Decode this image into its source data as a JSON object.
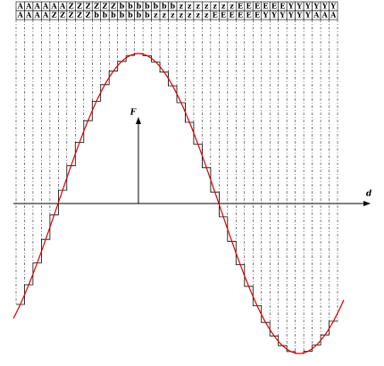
{
  "rows": [
    [
      "A",
      "A",
      "A",
      "A",
      "A",
      "A",
      "Z",
      "Z",
      "Z",
      "Z",
      "Z",
      "Z",
      "b",
      "b",
      "b",
      "b",
      "b",
      "b",
      "b",
      "z",
      "z",
      "z",
      "z",
      "z",
      "z",
      "z",
      "E",
      "E",
      "E",
      "E",
      "E",
      "E",
      "Y",
      "Y",
      "Y",
      "Y",
      "Y",
      "Y"
    ],
    [
      "A",
      "A",
      "A",
      "A",
      "Z",
      "Z",
      "Z",
      "Z",
      "Z",
      "b",
      "b",
      "b",
      "b",
      "b",
      "b",
      "b",
      "z",
      "z",
      "z",
      "z",
      "z",
      "z",
      "z",
      "E",
      "E",
      "E",
      "E",
      "E",
      "E",
      "Y",
      "Y",
      "Y",
      "Y",
      "Y",
      "Y",
      "A",
      "A",
      "A"
    ]
  ],
  "axis_x_label": "d",
  "axis_y_label": "F"
}
